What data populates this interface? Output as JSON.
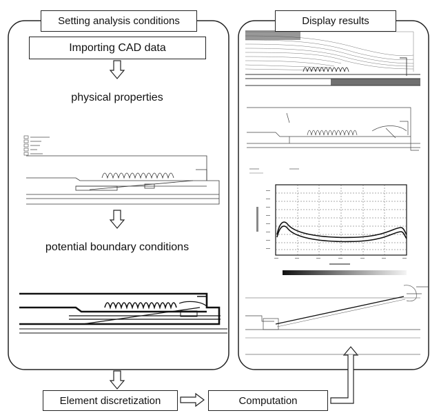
{
  "left_panel": {
    "title": "Setting analysis conditions",
    "step_import": "Importing CAD data",
    "step_properties": "physical properties",
    "step_boundary": "potential boundary conditions"
  },
  "right_panel": {
    "title": "Display results"
  },
  "bottom_flow": {
    "discretization": "Element discretization",
    "computation": "Computation"
  },
  "icons": {
    "arrow_down": "hollow-arrow-down-icon",
    "arrow_right": "hollow-arrow-right-icon",
    "arrow_elbow_up": "elbow-arrow-up-icon"
  },
  "colors": {
    "line": "#222222",
    "background": "#ffffff"
  }
}
